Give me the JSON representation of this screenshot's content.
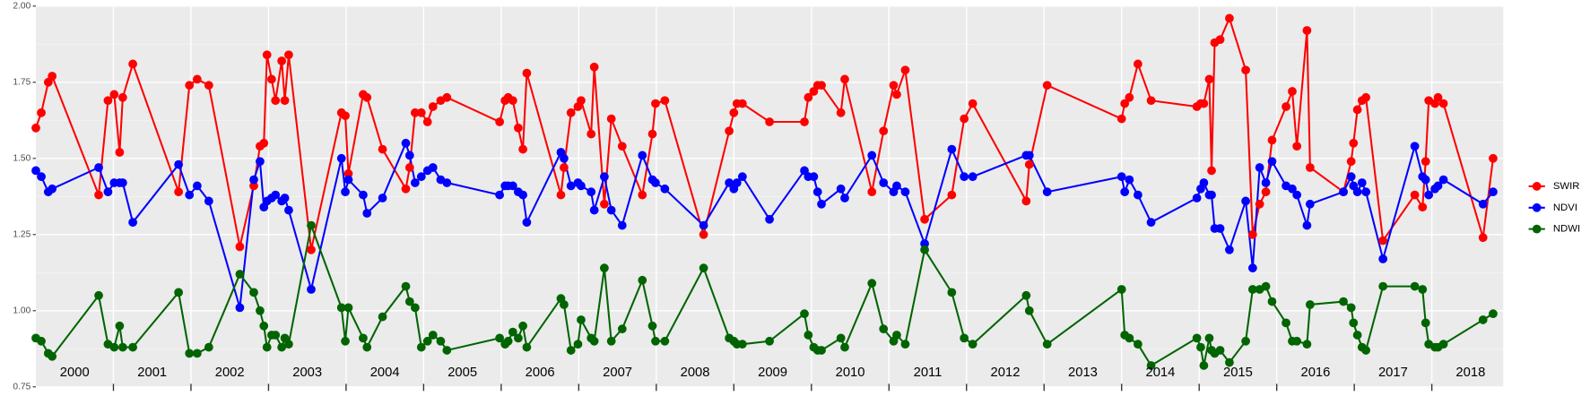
{
  "chart_data": {
    "type": "line",
    "x": [
      2000.0,
      2000.07,
      2000.16,
      2000.21,
      2000.81,
      2000.93,
      2001.01,
      2001.08,
      2001.12,
      2001.25,
      2001.84,
      2001.98,
      2002.08,
      2002.23,
      2002.63,
      2002.81,
      2002.89,
      2002.94,
      2002.98,
      2003.04,
      2003.09,
      2003.17,
      2003.21,
      2003.26,
      2003.55,
      2003.94,
      2003.99,
      2004.03,
      2004.22,
      2004.27,
      2004.47,
      2004.77,
      2004.82,
      2004.89,
      2004.97,
      2005.05,
      2005.12,
      2005.22,
      2005.3,
      2005.98,
      2006.05,
      2006.09,
      2006.15,
      2006.22,
      2006.28,
      2006.33,
      2006.77,
      2006.81,
      2006.9,
      2006.99,
      2007.03,
      2007.16,
      2007.2,
      2007.33,
      2007.42,
      2007.56,
      2007.82,
      2007.95,
      2007.99,
      2008.11,
      2008.61,
      2008.94,
      2009.0,
      2009.04,
      2009.11,
      2009.46,
      2009.91,
      2009.96,
      2010.03,
      2010.08,
      2010.13,
      2010.38,
      2010.43,
      2010.78,
      2010.93,
      2011.06,
      2011.1,
      2011.21,
      2011.46,
      2011.81,
      2011.97,
      2012.08,
      2012.77,
      2012.81,
      2013.04,
      2014.0,
      2014.04,
      2014.1,
      2014.21,
      2014.38,
      2014.97,
      2015.02,
      2015.06,
      2015.13,
      2015.16,
      2015.2,
      2015.27,
      2015.39,
      2015.6,
      2015.69,
      2015.78,
      2015.86,
      2015.94,
      2016.12,
      2016.2,
      2016.26,
      2016.39,
      2016.43,
      2016.86,
      2016.96,
      2016.99,
      2017.04,
      2017.1,
      2017.15,
      2017.37,
      2017.78,
      2017.88,
      2017.92,
      2017.96,
      2018.04,
      2018.08,
      2018.15,
      2018.66,
      2018.79
    ],
    "series": [
      {
        "name": "SWIR",
        "color": "#ff0000",
        "values": [
          1.6,
          1.65,
          1.75,
          1.77,
          1.38,
          1.69,
          1.71,
          1.52,
          1.7,
          1.81,
          1.39,
          1.74,
          1.76,
          1.74,
          1.21,
          1.41,
          1.54,
          1.55,
          1.84,
          1.76,
          1.69,
          1.82,
          1.69,
          1.84,
          1.2,
          1.65,
          1.64,
          1.45,
          1.71,
          1.7,
          1.53,
          1.4,
          1.47,
          1.65,
          1.65,
          1.62,
          1.67,
          1.69,
          1.7,
          1.62,
          1.69,
          1.7,
          1.69,
          1.6,
          1.53,
          1.78,
          1.38,
          1.47,
          1.65,
          1.67,
          1.69,
          1.58,
          1.8,
          1.35,
          1.63,
          1.54,
          1.38,
          1.58,
          1.68,
          1.69,
          1.25,
          1.59,
          1.65,
          1.68,
          1.68,
          1.62,
          1.62,
          1.7,
          1.72,
          1.74,
          1.74,
          1.65,
          1.76,
          1.39,
          1.59,
          1.74,
          1.71,
          1.79,
          1.3,
          1.38,
          1.63,
          1.68,
          1.36,
          1.48,
          1.74,
          1.63,
          1.68,
          1.7,
          1.81,
          1.69,
          1.67,
          1.68,
          1.68,
          1.76,
          1.46,
          1.88,
          1.89,
          1.96,
          1.79,
          1.25,
          1.35,
          1.39,
          1.56,
          1.67,
          1.72,
          1.54,
          1.92,
          1.47,
          1.39,
          1.49,
          1.55,
          1.66,
          1.69,
          1.7,
          1.23,
          1.38,
          1.34,
          1.49,
          1.69,
          1.68,
          1.7,
          1.68,
          1.24,
          1.5
        ]
      },
      {
        "name": "NDVI",
        "color": "#0000ff",
        "values": [
          1.46,
          1.44,
          1.39,
          1.4,
          1.47,
          1.39,
          1.42,
          1.42,
          1.42,
          1.29,
          1.48,
          1.38,
          1.41,
          1.36,
          1.01,
          1.43,
          1.49,
          1.34,
          1.36,
          1.37,
          1.38,
          1.36,
          1.37,
          1.33,
          1.07,
          1.5,
          1.39,
          1.43,
          1.38,
          1.32,
          1.37,
          1.55,
          1.51,
          1.42,
          1.44,
          1.46,
          1.47,
          1.43,
          1.42,
          1.38,
          1.41,
          1.41,
          1.41,
          1.39,
          1.38,
          1.29,
          1.52,
          1.5,
          1.41,
          1.42,
          1.41,
          1.39,
          1.33,
          1.44,
          1.33,
          1.28,
          1.51,
          1.43,
          1.42,
          1.4,
          1.28,
          1.42,
          1.4,
          1.42,
          1.44,
          1.3,
          1.46,
          1.44,
          1.44,
          1.39,
          1.35,
          1.4,
          1.37,
          1.51,
          1.42,
          1.39,
          1.41,
          1.39,
          1.22,
          1.53,
          1.44,
          1.44,
          1.51,
          1.51,
          1.39,
          1.44,
          1.39,
          1.43,
          1.38,
          1.29,
          1.37,
          1.4,
          1.42,
          1.38,
          1.38,
          1.27,
          1.27,
          1.2,
          1.36,
          1.14,
          1.47,
          1.42,
          1.49,
          1.41,
          1.4,
          1.38,
          1.28,
          1.35,
          1.39,
          1.44,
          1.41,
          1.39,
          1.42,
          1.39,
          1.17,
          1.54,
          1.44,
          1.43,
          1.38,
          1.4,
          1.41,
          1.43,
          1.35,
          1.39
        ]
      },
      {
        "name": "NDWI",
        "color": "#006400",
        "values": [
          0.91,
          0.9,
          0.86,
          0.85,
          1.05,
          0.89,
          0.88,
          0.95,
          0.88,
          0.88,
          1.06,
          0.86,
          0.86,
          0.88,
          1.12,
          1.06,
          1.0,
          0.95,
          0.88,
          0.92,
          0.92,
          0.88,
          0.91,
          0.89,
          1.28,
          1.01,
          0.9,
          1.01,
          0.91,
          0.88,
          0.98,
          1.08,
          1.03,
          1.01,
          0.88,
          0.9,
          0.92,
          0.9,
          0.87,
          0.91,
          0.89,
          0.9,
          0.93,
          0.91,
          0.95,
          0.88,
          1.04,
          1.02,
          0.87,
          0.89,
          0.97,
          0.91,
          0.9,
          1.14,
          0.9,
          0.94,
          1.1,
          0.95,
          0.9,
          0.9,
          1.14,
          0.91,
          0.9,
          0.89,
          0.89,
          0.9,
          0.99,
          0.92,
          0.88,
          0.87,
          0.87,
          0.91,
          0.88,
          1.09,
          0.94,
          0.9,
          0.92,
          0.89,
          1.2,
          1.06,
          0.91,
          0.89,
          1.05,
          1.0,
          0.89,
          1.07,
          0.92,
          0.91,
          0.89,
          0.82,
          0.91,
          0.88,
          0.82,
          0.91,
          0.87,
          0.86,
          0.87,
          0.83,
          0.9,
          1.07,
          1.07,
          1.08,
          1.03,
          0.96,
          0.9,
          0.9,
          0.89,
          1.02,
          1.03,
          1.01,
          0.96,
          0.92,
          0.88,
          0.87,
          1.08,
          1.08,
          1.07,
          0.96,
          0.89,
          0.88,
          0.88,
          0.89,
          0.97,
          0.99
        ]
      }
    ],
    "xlim": [
      2000.0,
      2018.92
    ],
    "xticks": [
      {
        "value": 2000.5,
        "label": "2000"
      },
      {
        "value": 2001.5,
        "label": "2001"
      },
      {
        "value": 2002.5,
        "label": "2002"
      },
      {
        "value": 2003.5,
        "label": "2003"
      },
      {
        "value": 2004.5,
        "label": "2004"
      },
      {
        "value": 2005.5,
        "label": "2005"
      },
      {
        "value": 2006.5,
        "label": "2006"
      },
      {
        "value": 2007.5,
        "label": "2007"
      },
      {
        "value": 2008.5,
        "label": "2008"
      },
      {
        "value": 2009.5,
        "label": "2009"
      },
      {
        "value": 2010.5,
        "label": "2010"
      },
      {
        "value": 2011.5,
        "label": "2011"
      },
      {
        "value": 2012.5,
        "label": "2012"
      },
      {
        "value": 2013.5,
        "label": "2013"
      },
      {
        "value": 2014.5,
        "label": "2014"
      },
      {
        "value": 2015.5,
        "label": "2015"
      },
      {
        "value": 2016.5,
        "label": "2016"
      },
      {
        "value": 2017.5,
        "label": "2017"
      },
      {
        "value": 2018.5,
        "label": "2018"
      }
    ],
    "xgrid": [
      2001,
      2002,
      2003,
      2004,
      2005,
      2006,
      2007,
      2008,
      2009,
      2010,
      2011,
      2012,
      2013,
      2014,
      2015,
      2016,
      2017,
      2018
    ],
    "ylim": [
      0.75,
      2.0
    ],
    "yticks": [
      {
        "value": 0.75,
        "label": "0.75"
      },
      {
        "value": 1.0,
        "label": "1.00"
      },
      {
        "value": 1.25,
        "label": "1.25"
      },
      {
        "value": 1.5,
        "label": "1.50"
      },
      {
        "value": 1.75,
        "label": "1.75"
      },
      {
        "value": 2.0,
        "label": "2.00"
      }
    ],
    "grid": true,
    "legend": "right"
  }
}
